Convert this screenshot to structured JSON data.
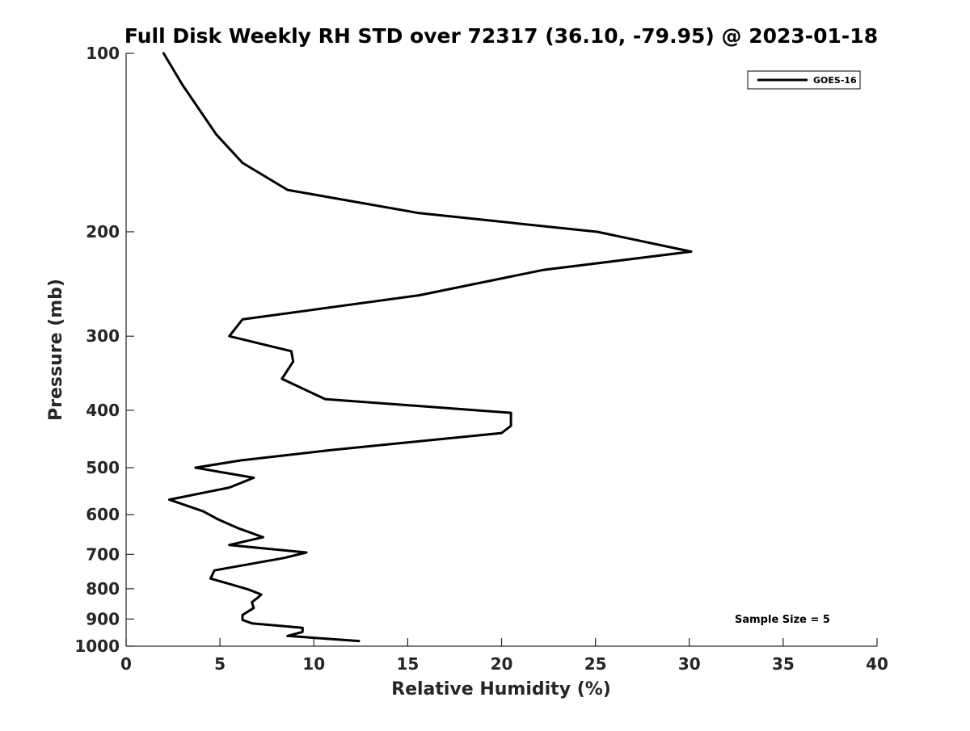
{
  "chart_data": {
    "type": "line",
    "title": "Full Disk Weekly RH STD over 72317 (36.10, -79.95) @ 2023-01-18",
    "xlabel": "Relative Humidity (%)",
    "ylabel": "Pressure (mb)",
    "xlim": [
      0,
      40
    ],
    "ylim": [
      100,
      1000
    ],
    "y_scale": "log",
    "y_inverted": true,
    "grid": false,
    "x_ticks": [
      0,
      5,
      10,
      15,
      20,
      25,
      30,
      35,
      40
    ],
    "x_tick_labels": [
      "0",
      "5",
      "10",
      "15",
      "20",
      "25",
      "30",
      "35",
      "40"
    ],
    "y_ticks": [
      100,
      200,
      300,
      400,
      500,
      600,
      700,
      800,
      900,
      1000
    ],
    "y_tick_labels": [
      "100",
      "200",
      "300",
      "400",
      "500",
      "600",
      "700",
      "800",
      "900",
      "1000"
    ],
    "legend_position": "top-right",
    "annotation": "Sample Size = 5",
    "series": [
      {
        "name": "GOES-16",
        "color": "#000000",
        "x": [
          2.0,
          3.0,
          4.8,
          6.2,
          8.6,
          15.6,
          25.1,
          30.1,
          22.2,
          15.6,
          6.2,
          5.5,
          8.8,
          8.9,
          8.3,
          10.6,
          20.5,
          20.5,
          20.0,
          10.9,
          6.1,
          3.7,
          6.8,
          5.5,
          2.3,
          4.1,
          4.9,
          6.0,
          7.3,
          5.5,
          9.6,
          8.4,
          4.7,
          4.5,
          5.3,
          6.5,
          7.2,
          7.0,
          6.7,
          6.8,
          6.2,
          6.2,
          6.7,
          9.4,
          9.4,
          8.6,
          12.4
        ],
        "y": [
          100,
          113,
          137,
          153,
          170,
          186,
          200,
          216,
          232,
          256,
          281,
          300,
          318,
          331,
          354,
          383,
          404,
          425,
          437,
          467,
          486,
          500,
          520,
          540,
          566,
          592,
          611,
          633,
          655,
          675,
          695,
          710,
          745,
          769,
          782,
          802,
          818,
          829,
          843,
          862,
          886,
          903,
          915,
          931,
          946,
          961,
          980
        ]
      }
    ]
  }
}
